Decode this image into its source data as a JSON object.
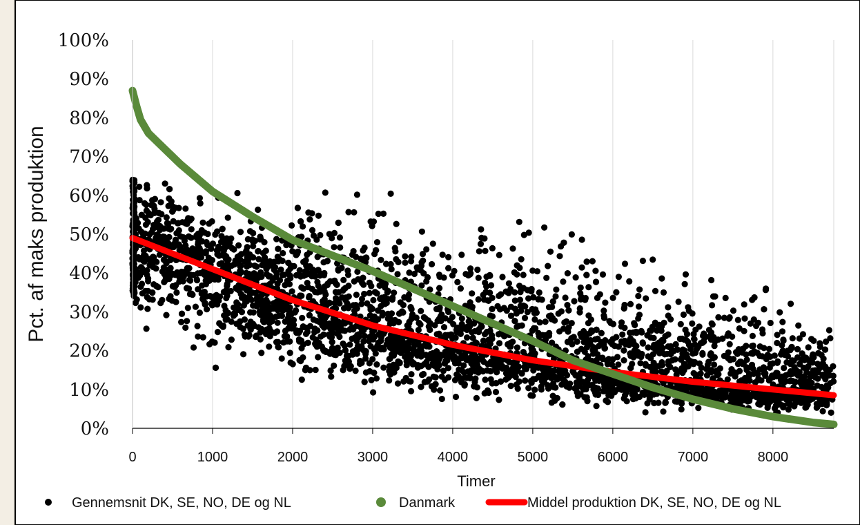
{
  "chart_data": {
    "type": "scatter",
    "title": "",
    "xlabel": "Timer",
    "ylabel": "Pct. af maks produktion",
    "xlim": [
      0,
      8760
    ],
    "ylim": [
      0,
      100
    ],
    "x_ticks": [
      0,
      1000,
      2000,
      3000,
      4000,
      5000,
      6000,
      7000,
      8000
    ],
    "y_ticks": [
      "0%",
      "10%",
      "20%",
      "30%",
      "40%",
      "50%",
      "60%",
      "70%",
      "80%",
      "90%",
      "100%"
    ],
    "grid": "vertical",
    "legend_position": "bottom",
    "colors": {
      "scatter": "#000000",
      "danmark": "#5a8a3a",
      "middel": "#ff0000",
      "gridline": "#d9d9d9",
      "plot_background": "#ffffff",
      "page_background": "#f3eee4"
    },
    "series": [
      {
        "name": "Gennemsnit DK, SE, NO, DE og NL",
        "kind": "scatter",
        "description_points": "dense cloud of hourly observations",
        "envelope": {
          "x": [
            0,
            1000,
            2000,
            3000,
            4000,
            5000,
            6000,
            7000,
            8000,
            8760
          ],
          "upper": [
            67,
            62,
            60,
            62,
            58,
            53,
            47,
            42,
            36,
            28
          ],
          "lower": [
            25,
            15,
            9,
            8,
            6,
            5,
            4,
            3,
            3,
            3
          ]
        }
      },
      {
        "name": "Danmark",
        "kind": "line",
        "x": [
          0,
          50,
          100,
          200,
          400,
          600,
          800,
          1000,
          1500,
          2000,
          2500,
          3000,
          3500,
          4000,
          4500,
          5000,
          5500,
          6000,
          6500,
          7000,
          7500,
          8000,
          8500,
          8760
        ],
        "y": [
          87,
          83,
          79.5,
          76,
          72,
          68,
          64.5,
          61,
          54.5,
          48.5,
          44.5,
          40.5,
          36,
          31.5,
          27,
          22.5,
          17.5,
          14,
          10.5,
          7.5,
          5,
          3,
          1.5,
          1
        ]
      },
      {
        "name": "Middel produktion DK, SE, NO, DE og NL",
        "kind": "line",
        "x": [
          0,
          1000,
          2000,
          3000,
          4000,
          5000,
          6000,
          7000,
          8000,
          8760
        ],
        "y": [
          49,
          41,
          33,
          26.5,
          21.5,
          17.5,
          14.5,
          12,
          10,
          8.5
        ]
      }
    ]
  }
}
